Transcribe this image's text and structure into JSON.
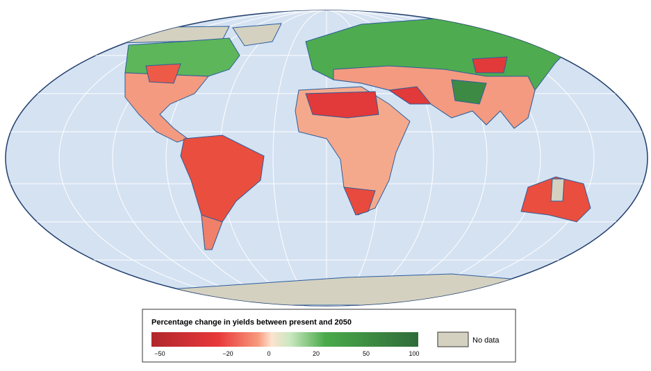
{
  "legend": {
    "title": "Percentage change in yields between present and 2050",
    "ticks": [
      {
        "value": -50,
        "label": "−50"
      },
      {
        "value": -20,
        "label": "−20"
      },
      0,
      20,
      50,
      100
    ],
    "no_data": "No data"
  }
}
